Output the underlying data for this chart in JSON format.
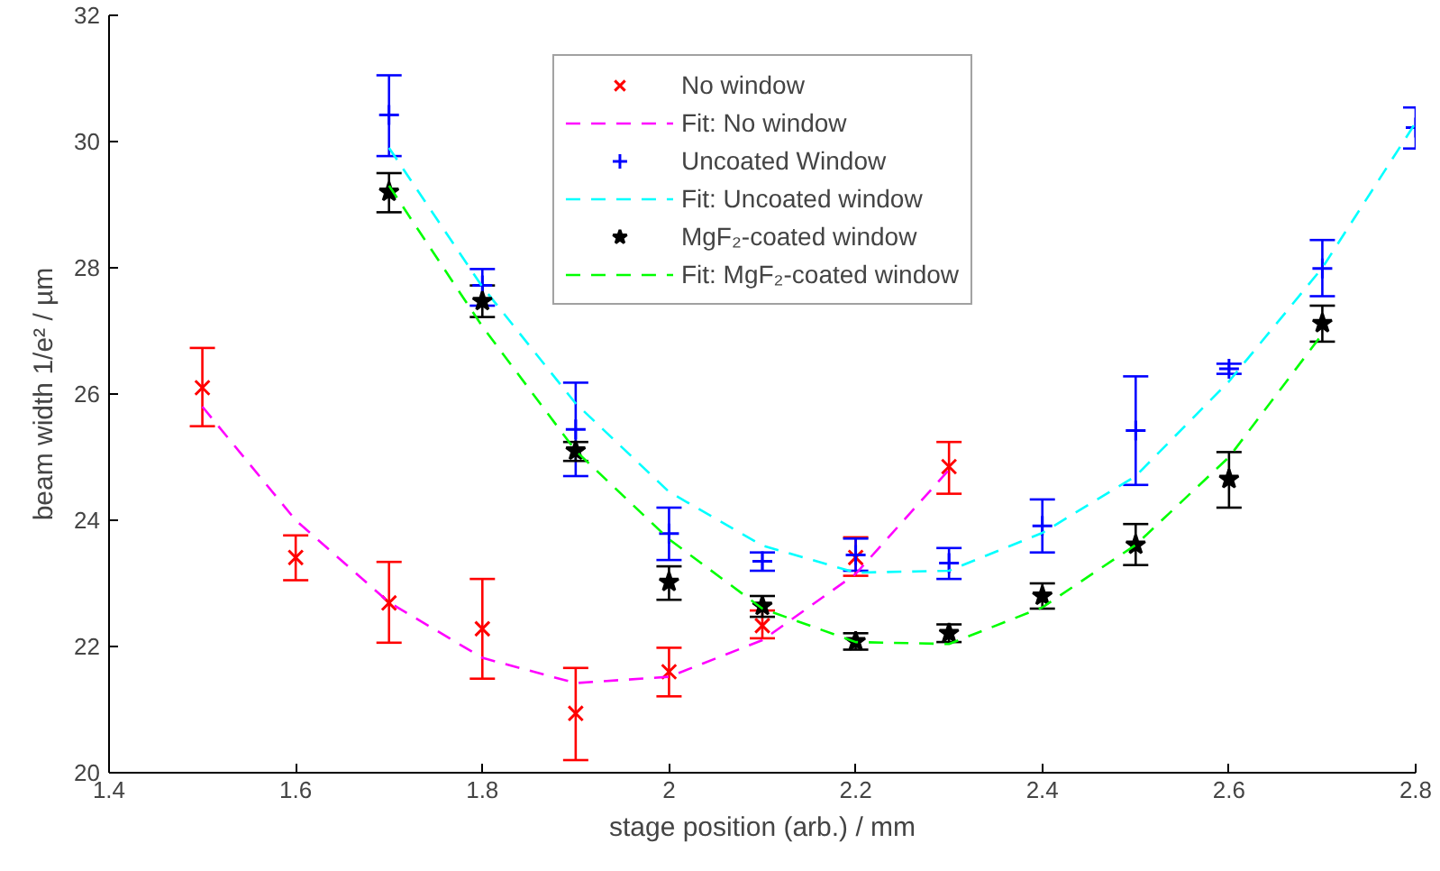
{
  "chart_data": {
    "type": "scatter",
    "xlabel": "stage position (arb.) / mm",
    "ylabel": "beam width 1/e² / µm",
    "xlim": [
      1.4,
      2.8
    ],
    "ylim": [
      20,
      32
    ],
    "xticks": [
      1.4,
      1.6,
      1.8,
      2,
      2.2,
      2.4,
      2.6,
      2.8
    ],
    "yticks": [
      20,
      22,
      24,
      26,
      28,
      30,
      32
    ],
    "grid": false,
    "legend": "top",
    "series": [
      {
        "name": "No window",
        "marker": "x",
        "color": "#ff0000",
        "x": [
          1.5,
          1.6,
          1.7,
          1.8,
          1.9,
          2.0,
          2.1,
          2.2,
          2.3
        ],
        "values": [
          26.1,
          23.41,
          22.69,
          22.28,
          20.94,
          21.6,
          22.33,
          23.41,
          24.85
        ],
        "errors": [
          [
            25.49,
            26.73
          ],
          [
            23.05,
            23.76
          ],
          [
            22.06,
            23.34
          ],
          [
            21.49,
            23.07
          ],
          [
            20.2,
            21.66
          ],
          [
            21.21,
            21.98
          ],
          [
            22.13,
            22.57
          ],
          [
            23.12,
            23.73
          ],
          [
            24.42,
            25.24
          ]
        ]
      },
      {
        "name": "Fit: No window",
        "type": "line",
        "marker": "none",
        "line_style": "dashed",
        "color": "#ff00ff",
        "x": [
          1.5,
          1.6,
          1.7,
          1.8,
          1.9,
          2.0,
          2.1,
          2.2,
          2.3
        ],
        "values": [
          25.8,
          24.0,
          22.7,
          21.82,
          21.42,
          21.52,
          22.1,
          23.15,
          24.8
        ]
      },
      {
        "name": "Uncoated Window",
        "marker": "cross",
        "color": "#0000ff",
        "x": [
          1.7,
          1.8,
          1.9,
          2.0,
          2.1,
          2.2,
          2.3,
          2.4,
          2.5,
          2.6,
          2.7,
          2.8
        ],
        "values": [
          30.42,
          27.72,
          25.44,
          23.79,
          23.35,
          23.45,
          23.32,
          23.91,
          25.42,
          26.4,
          27.99,
          30.22
        ],
        "errors": [
          [
            29.77,
            31.05
          ],
          [
            27.4,
            27.98
          ],
          [
            24.7,
            26.18
          ],
          [
            23.37,
            24.2
          ],
          [
            23.2,
            23.49
          ],
          [
            23.2,
            23.71
          ],
          [
            23.07,
            23.56
          ],
          [
            23.49,
            24.33
          ],
          [
            24.56,
            26.28
          ],
          [
            26.32,
            26.48
          ],
          [
            27.55,
            28.44
          ],
          [
            29.89,
            30.54
          ]
        ]
      },
      {
        "name": "Fit: Uncoated window",
        "type": "line",
        "marker": "none",
        "line_style": "dashed",
        "color": "#00ffff",
        "x": [
          1.7,
          1.8,
          1.9,
          2.0,
          2.1,
          2.2,
          2.3,
          2.4,
          2.5,
          2.6,
          2.7,
          2.8
        ],
        "values": [
          29.9,
          27.7,
          25.85,
          24.45,
          23.6,
          23.17,
          23.2,
          23.8,
          24.7,
          26.2,
          28.0,
          30.3
        ]
      },
      {
        "name": "MgF₂-coated window",
        "marker": "star",
        "color": "#000000",
        "x": [
          1.7,
          1.8,
          1.9,
          2.0,
          2.1,
          2.2,
          2.3,
          2.4,
          2.5,
          2.6,
          2.7
        ],
        "values": [
          29.2,
          27.47,
          25.1,
          23.02,
          22.64,
          22.08,
          22.21,
          22.8,
          23.61,
          24.65,
          27.12
        ],
        "errors": [
          [
            28.88,
            29.5
          ],
          [
            27.22,
            27.72
          ],
          [
            24.94,
            25.24
          ],
          [
            22.74,
            23.27
          ],
          [
            22.47,
            22.8
          ],
          [
            21.95,
            22.21
          ],
          [
            22.07,
            22.35
          ],
          [
            22.6,
            23.0
          ],
          [
            23.29,
            23.94
          ],
          [
            24.2,
            25.08
          ],
          [
            26.83,
            27.4
          ]
        ]
      },
      {
        "name": "Fit: MgF₂-coated window",
        "type": "line",
        "marker": "none",
        "line_style": "dashed",
        "color": "#00ff00",
        "x": [
          1.7,
          1.8,
          1.9,
          2.0,
          2.1,
          2.2,
          2.3,
          2.4,
          2.5,
          2.6,
          2.7
        ],
        "values": [
          29.3,
          27.07,
          25.1,
          23.7,
          22.6,
          22.07,
          22.04,
          22.62,
          23.61,
          25.0,
          26.95
        ]
      }
    ]
  }
}
